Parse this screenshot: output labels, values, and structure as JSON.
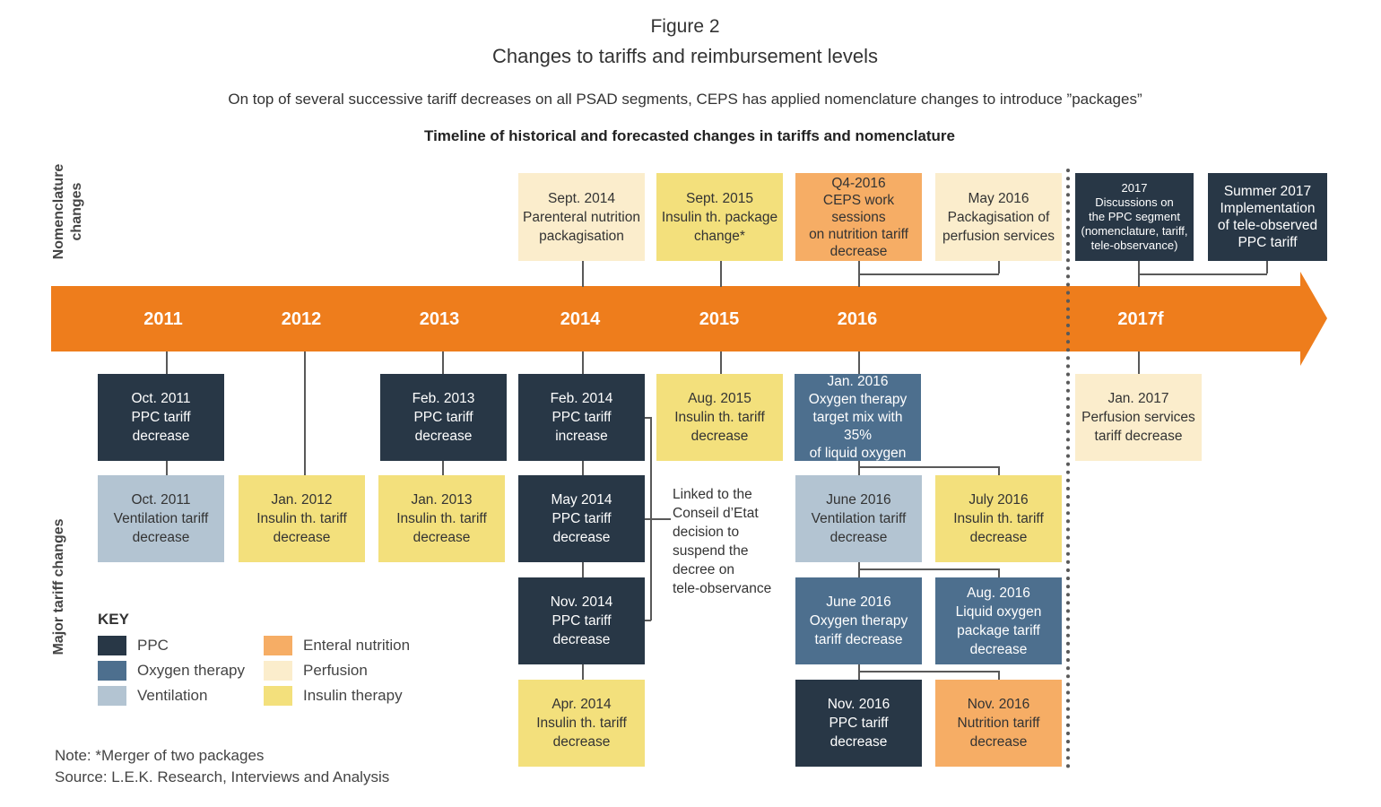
{
  "header": {
    "figure_label": "Figure 2",
    "title": "Changes to tariffs and reimbursement levels",
    "subtitle": "On top of several successive tariff decreases on all PSAD segments, CEPS has applied nomenclature changes to introduce ”packages”",
    "timeline_heading": "Timeline of historical and forecasted changes in tariffs and nomenclature"
  },
  "row_labels": {
    "nomenclature": "Nomenclature\nchanges",
    "tariff": "Major tariff changes"
  },
  "timeline": {
    "years": [
      "2011",
      "2012",
      "2013",
      "2014",
      "2015",
      "2016",
      "2017f"
    ]
  },
  "nomenclature_events": [
    {
      "text": "Sept. 2014\nParenteral nutrition\npackagisation",
      "category": "Perfusion"
    },
    {
      "text": "Sept. 2015\nInsulin th. package\nchange*",
      "category": "Insulin therapy"
    },
    {
      "text": "Q4-2016\nCEPS work sessions\non nutrition tariff\ndecrease",
      "category": "Enteral nutrition"
    },
    {
      "text": "May 2016\nPackagisation of\nperfusion services",
      "category": "Perfusion"
    },
    {
      "text": "2017\nDiscussions on\nthe PPC segment\n(nomenclature, tariff,\ntele-observance)",
      "category": "PPC"
    },
    {
      "text": "Summer 2017\nImplementation\nof tele-observed\nPPC tariff",
      "category": "PPC"
    }
  ],
  "tariff_events": [
    {
      "text": "Oct. 2011\nPPC tariff\ndecrease",
      "category": "PPC"
    },
    {
      "text": "Oct. 2011\nVentilation tariff\ndecrease",
      "category": "Ventilation"
    },
    {
      "text": "Jan. 2012\nInsulin th. tariff\ndecrease",
      "category": "Insulin therapy"
    },
    {
      "text": "Feb. 2013\nPPC tariff\ndecrease",
      "category": "PPC"
    },
    {
      "text": "Jan. 2013\nInsulin th. tariff\ndecrease",
      "category": "Insulin therapy"
    },
    {
      "text": "Feb. 2014\nPPC tariff\nincrease",
      "category": "PPC"
    },
    {
      "text": "May 2014\nPPC tariff\ndecrease",
      "category": "PPC"
    },
    {
      "text": "Nov. 2014\nPPC tariff\ndecrease",
      "category": "PPC"
    },
    {
      "text": "Apr. 2014\nInsulin th. tariff\ndecrease",
      "category": "Insulin therapy"
    },
    {
      "text": "Aug. 2015\nInsulin th. tariff\ndecrease",
      "category": "Insulin therapy"
    },
    {
      "text": "Jan. 2016\nOxygen therapy\ntarget mix with 35%\nof liquid oxygen",
      "category": "Oxygen therapy"
    },
    {
      "text": "June 2016\nVentilation tariff\ndecrease",
      "category": "Ventilation"
    },
    {
      "text": "July 2016\nInsulin th. tariff\ndecrease",
      "category": "Insulin therapy"
    },
    {
      "text": "June 2016\nOxygen therapy\ntariff decrease",
      "category": "Oxygen therapy"
    },
    {
      "text": "Aug. 2016\nLiquid oxygen\npackage tariff\ndecrease",
      "category": "Oxygen therapy"
    },
    {
      "text": "Nov. 2016\nPPC tariff\ndecrease",
      "category": "PPC"
    },
    {
      "text": "Nov. 2016\nNutrition tariff\ndecrease",
      "category": "Enteral nutrition"
    },
    {
      "text": "Jan. 2017\nPerfusion services\ntariff decrease",
      "category": "Perfusion"
    }
  ],
  "linked_note": "Linked to the\nConseil d’Etat\ndecision to\nsuspend the\ndecree on\ntele-observance",
  "key": {
    "title": "KEY",
    "items": [
      {
        "label": "PPC",
        "color": "#283746"
      },
      {
        "label": "Oxygen therapy",
        "color": "#4d6f8e"
      },
      {
        "label": "Ventilation",
        "color": "#b3c4d2"
      },
      {
        "label": "Enteral nutrition",
        "color": "#f6ad65"
      },
      {
        "label": "Perfusion",
        "color": "#fbedcc"
      },
      {
        "label": "Insulin therapy",
        "color": "#f3e07c"
      }
    ]
  },
  "footer": {
    "note": "Note: *Merger of two packages",
    "source": "Source: L.E.K. Research, Interviews and Analysis"
  },
  "colors": {
    "timeline_arrow": "#ee7d1c",
    "connector_lines": "#595959"
  }
}
